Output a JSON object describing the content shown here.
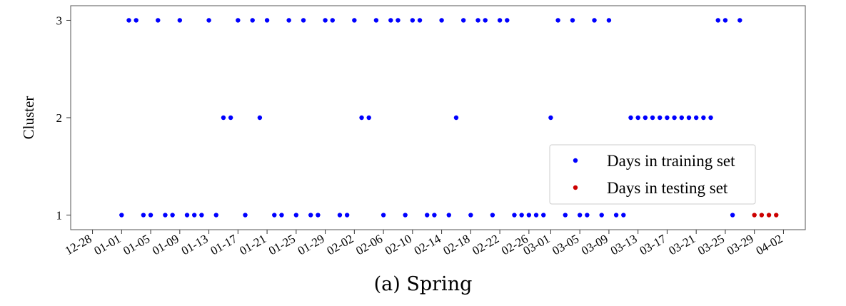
{
  "caption": "(a) Spring",
  "chart_data": {
    "type": "scatter",
    "ylabel": "Cluster",
    "yticks": [
      1,
      2,
      3
    ],
    "ylim": [
      0.85,
      3.15
    ],
    "xlim": [
      "2024-12-25",
      "2025-04-05"
    ],
    "xtick_labels": [
      "12-28",
      "01-01",
      "01-05",
      "01-09",
      "01-13",
      "01-17",
      "01-21",
      "01-25",
      "01-29",
      "02-02",
      "02-06",
      "02-10",
      "02-14",
      "02-18",
      "02-22",
      "02-26",
      "03-01",
      "03-05",
      "03-09",
      "03-13",
      "03-17",
      "03-21",
      "03-25",
      "03-29",
      "04-02"
    ],
    "xtick_dates": [
      "2024-12-28",
      "2025-01-01",
      "2025-01-05",
      "2025-01-09",
      "2025-01-13",
      "2025-01-17",
      "2025-01-21",
      "2025-01-25",
      "2025-01-29",
      "2025-02-02",
      "2025-02-06",
      "2025-02-10",
      "2025-02-14",
      "2025-02-18",
      "2025-02-22",
      "2025-02-26",
      "2025-03-01",
      "2025-03-05",
      "2025-03-09",
      "2025-03-13",
      "2025-03-17",
      "2025-03-21",
      "2025-03-25",
      "2025-03-29",
      "2025-04-02"
    ],
    "legend": {
      "placement": "lower-right"
    },
    "series": [
      {
        "name": "Days in training set",
        "color": "#0000ff",
        "points": [
          [
            "2025-01-01",
            1
          ],
          [
            "2025-01-02",
            3
          ],
          [
            "2025-01-03",
            3
          ],
          [
            "2025-01-04",
            1
          ],
          [
            "2025-01-05",
            1
          ],
          [
            "2025-01-06",
            3
          ],
          [
            "2025-01-07",
            1
          ],
          [
            "2025-01-08",
            1
          ],
          [
            "2025-01-09",
            3
          ],
          [
            "2025-01-10",
            1
          ],
          [
            "2025-01-11",
            1
          ],
          [
            "2025-01-12",
            1
          ],
          [
            "2025-01-13",
            3
          ],
          [
            "2025-01-14",
            1
          ],
          [
            "2025-01-15",
            2
          ],
          [
            "2025-01-16",
            2
          ],
          [
            "2025-01-17",
            3
          ],
          [
            "2025-01-18",
            1
          ],
          [
            "2025-01-19",
            3
          ],
          [
            "2025-01-20",
            2
          ],
          [
            "2025-01-21",
            3
          ],
          [
            "2025-01-22",
            1
          ],
          [
            "2025-01-23",
            1
          ],
          [
            "2025-01-24",
            3
          ],
          [
            "2025-01-25",
            1
          ],
          [
            "2025-01-26",
            3
          ],
          [
            "2025-01-27",
            1
          ],
          [
            "2025-01-28",
            1
          ],
          [
            "2025-01-29",
            3
          ],
          [
            "2025-01-30",
            3
          ],
          [
            "2025-01-31",
            1
          ],
          [
            "2025-02-01",
            1
          ],
          [
            "2025-02-02",
            3
          ],
          [
            "2025-02-03",
            2
          ],
          [
            "2025-02-04",
            2
          ],
          [
            "2025-02-05",
            3
          ],
          [
            "2025-02-06",
            1
          ],
          [
            "2025-02-07",
            3
          ],
          [
            "2025-02-08",
            3
          ],
          [
            "2025-02-09",
            1
          ],
          [
            "2025-02-10",
            3
          ],
          [
            "2025-02-11",
            3
          ],
          [
            "2025-02-12",
            1
          ],
          [
            "2025-02-13",
            1
          ],
          [
            "2025-02-14",
            3
          ],
          [
            "2025-02-15",
            1
          ],
          [
            "2025-02-16",
            2
          ],
          [
            "2025-02-17",
            3
          ],
          [
            "2025-02-18",
            1
          ],
          [
            "2025-02-19",
            3
          ],
          [
            "2025-02-20",
            3
          ],
          [
            "2025-02-21",
            1
          ],
          [
            "2025-02-22",
            3
          ],
          [
            "2025-02-23",
            3
          ],
          [
            "2025-02-24",
            1
          ],
          [
            "2025-02-25",
            1
          ],
          [
            "2025-02-26",
            1
          ],
          [
            "2025-02-27",
            1
          ],
          [
            "2025-02-28",
            1
          ],
          [
            "2025-03-01",
            2
          ],
          [
            "2025-03-02",
            3
          ],
          [
            "2025-03-03",
            1
          ],
          [
            "2025-03-04",
            3
          ],
          [
            "2025-03-05",
            1
          ],
          [
            "2025-03-06",
            1
          ],
          [
            "2025-03-07",
            3
          ],
          [
            "2025-03-08",
            1
          ],
          [
            "2025-03-09",
            3
          ],
          [
            "2025-03-10",
            1
          ],
          [
            "2025-03-11",
            1
          ],
          [
            "2025-03-12",
            2
          ],
          [
            "2025-03-13",
            2
          ],
          [
            "2025-03-14",
            2
          ],
          [
            "2025-03-15",
            2
          ],
          [
            "2025-03-16",
            2
          ],
          [
            "2025-03-17",
            2
          ],
          [
            "2025-03-18",
            2
          ],
          [
            "2025-03-19",
            2
          ],
          [
            "2025-03-20",
            2
          ],
          [
            "2025-03-21",
            2
          ],
          [
            "2025-03-22",
            2
          ],
          [
            "2025-03-23",
            2
          ],
          [
            "2025-03-24",
            3
          ],
          [
            "2025-03-25",
            3
          ],
          [
            "2025-03-26",
            1
          ],
          [
            "2025-03-27",
            3
          ]
        ]
      },
      {
        "name": "Days in testing set",
        "color": "#cc0000",
        "points": [
          [
            "2025-03-29",
            1
          ],
          [
            "2025-03-30",
            1
          ],
          [
            "2025-03-31",
            1
          ],
          [
            "2025-04-01",
            1
          ]
        ]
      }
    ]
  }
}
